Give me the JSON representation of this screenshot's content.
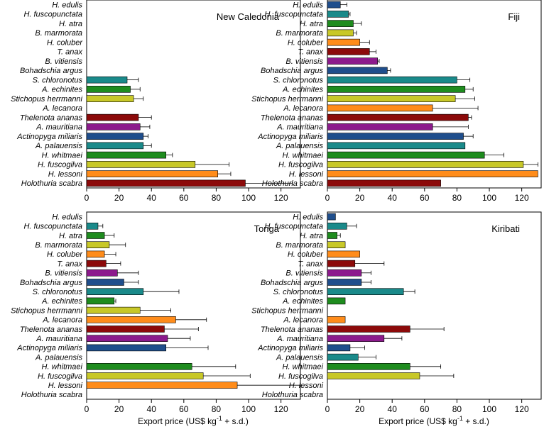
{
  "categories": [
    "H. edulis",
    "H. fuscopunctata",
    "H. atra",
    "B. marmorata",
    "H. coluber",
    "T. anax",
    "B. vitiensis",
    "Bohadschia argus",
    "S. chloronotus",
    "A. echinites",
    "Stichopus herrmanni",
    "A. lecanora",
    "Thelenota ananas",
    "A. mauritiana",
    "Actinopyga miliaris",
    "A. palauensis",
    "H. whitmaei",
    "H. fuscogilva",
    "H. lessoni",
    "Holothuria scabra"
  ],
  "colors": [
    "#1f4e8c",
    "#1a8a8a",
    "#1e8c1e",
    "#c8c828",
    "#ff8c1a",
    "#8c0a0a",
    "#8c1a8c",
    "#1f4e8c",
    "#1a8a8a",
    "#1e8c1e",
    "#c8c828",
    "#ff8c1a",
    "#8c0a0a",
    "#8c1a8c",
    "#1f4e8c",
    "#1a8a8a",
    "#1e8c1e",
    "#c8c828",
    "#ff8c1a",
    "#8c0a0a"
  ],
  "xlabel_main": "Export price (US$ kg",
  "xlabel_sup": "-1",
  "xlabel_end": " + s.d.)",
  "chart_data": [
    {
      "type": "bar",
      "title": "New Caledonia",
      "xlim": [
        0,
        132
      ],
      "ticks": [
        "0",
        "20",
        "40",
        "60",
        "80",
        "100",
        "120"
      ],
      "values": [
        null,
        null,
        null,
        null,
        null,
        null,
        null,
        null,
        25,
        27,
        29,
        null,
        32,
        33,
        35,
        35,
        49,
        67,
        81,
        98
      ],
      "errors": [
        null,
        null,
        null,
        null,
        null,
        null,
        null,
        null,
        7,
        6,
        6,
        null,
        8,
        6,
        3,
        5,
        4,
        21,
        8,
        29
      ]
    },
    {
      "type": "bar",
      "title": "Fiji",
      "xlim": [
        0,
        132
      ],
      "ticks": [
        "0",
        "20",
        "40",
        "60",
        "80",
        "100",
        "120"
      ],
      "values": [
        8,
        13,
        16,
        16,
        20,
        26,
        31,
        37,
        80,
        85,
        79,
        65,
        87,
        65,
        84,
        85,
        97,
        121,
        130,
        70
      ],
      "errors": [
        4,
        1,
        5,
        2,
        6,
        4,
        1,
        2,
        8,
        5,
        12,
        28,
        2,
        22,
        6,
        null,
        12,
        9,
        null,
        null
      ]
    },
    {
      "type": "bar",
      "title": "Tonga",
      "xlim": [
        0,
        132
      ],
      "ticks": [
        "0",
        "20",
        "40",
        "60",
        "80",
        "100",
        "120"
      ],
      "values": [
        null,
        7,
        11,
        14,
        11,
        12,
        19,
        23,
        35,
        17,
        33,
        55,
        48,
        50,
        49,
        null,
        65,
        72,
        93,
        null
      ],
      "errors": [
        null,
        3,
        6,
        10,
        7,
        9,
        13,
        9,
        22,
        1,
        19,
        19,
        21,
        14,
        26,
        null,
        27,
        29,
        47,
        null
      ]
    },
    {
      "type": "bar",
      "title": "Kiribati",
      "xlim": [
        0,
        132
      ],
      "ticks": [
        "0",
        "20",
        "40",
        "60",
        "80",
        "100",
        "120"
      ],
      "values": [
        5,
        12,
        6,
        11,
        20,
        17,
        21,
        21,
        47,
        11,
        null,
        11,
        51,
        35,
        14,
        19,
        51,
        57,
        null,
        null
      ],
      "errors": [
        null,
        6,
        2,
        null,
        null,
        18,
        6,
        6,
        7,
        null,
        null,
        null,
        21,
        11,
        9,
        11,
        19,
        21,
        null,
        null
      ]
    }
  ]
}
